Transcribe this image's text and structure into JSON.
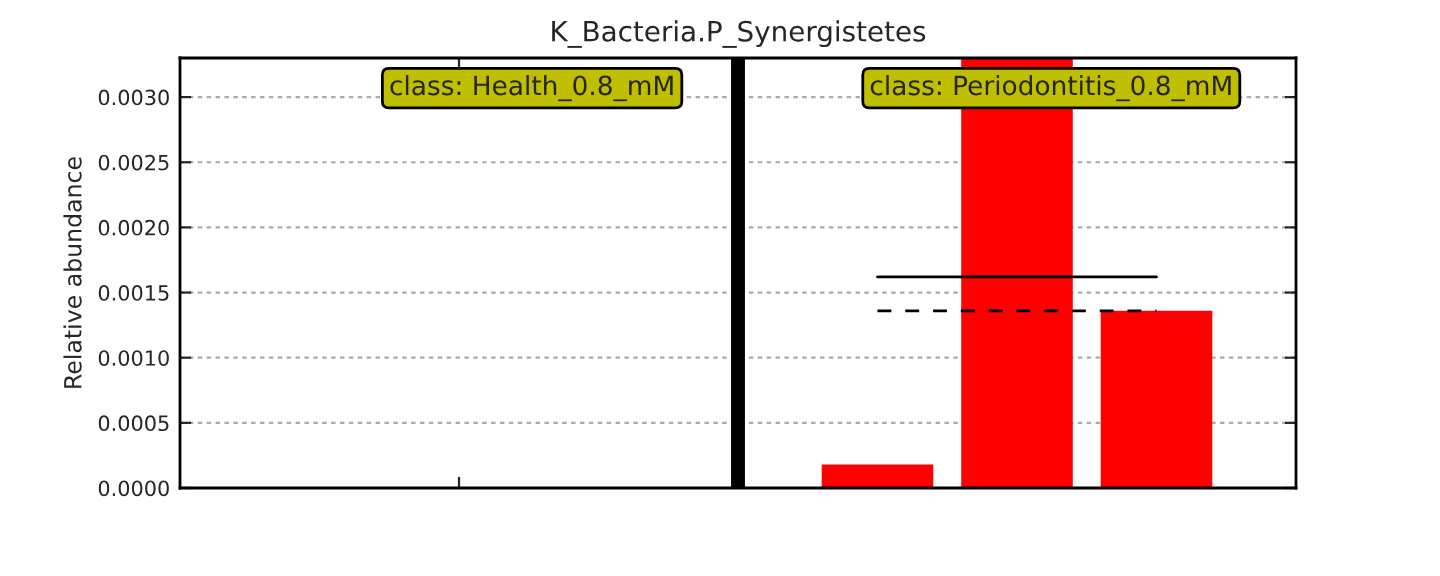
{
  "chart_data": {
    "type": "bar",
    "title": "K_Bacteria.P_Synergistetes",
    "ylabel": "Relative abundance",
    "categories": [
      null,
      null,
      null,
      null,
      null,
      null,
      null
    ],
    "series": [
      {
        "color": "#ff0000",
        "values": [
          0,
          0,
          0,
          null,
          0.00018,
          0.0033,
          0.00136
        ]
      }
    ],
    "ylim": [
      0,
      0.0033
    ],
    "yticks": [
      {
        "value": 0,
        "label": "0.0000"
      },
      {
        "value": 0.0005,
        "label": "0.0005"
      },
      {
        "value": 0.001,
        "label": "0.0010"
      },
      {
        "value": 0.0015,
        "label": "0.0015"
      },
      {
        "value": 0.002,
        "label": "0.0020"
      },
      {
        "value": 0.0025,
        "label": "0.0025"
      },
      {
        "value": 0.003,
        "label": "0.0030"
      }
    ],
    "ref_lines": [
      {
        "axis": "y",
        "value": 0.00162,
        "color": "#000000",
        "line_style": "solid"
      },
      {
        "axis": "y",
        "value": 0.00136,
        "color": "#000000",
        "line_style": "dashed"
      }
    ],
    "annotations": [
      "class: Health_0.8_mM",
      "class: Periodontitis_0.8_mM"
    ],
    "grid": "y"
  }
}
